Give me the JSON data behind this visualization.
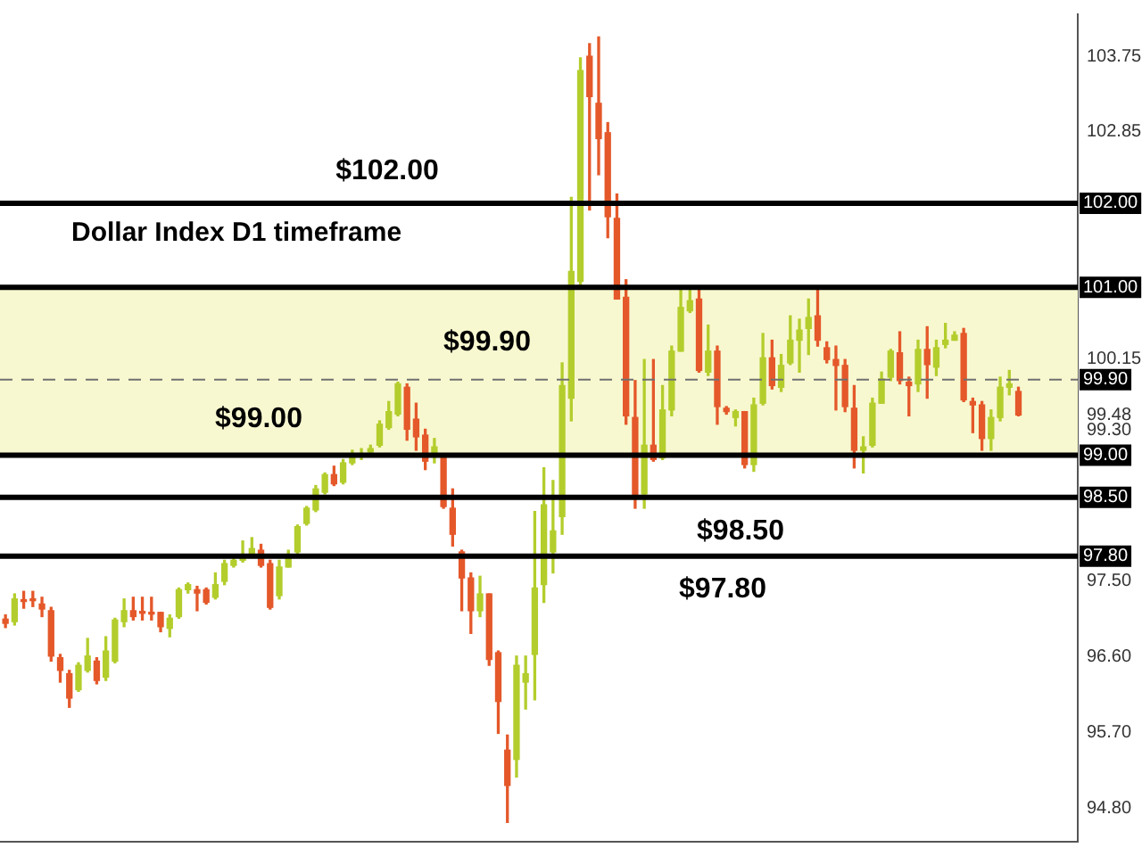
{
  "chart_data": {
    "type": "candlestick",
    "title": "Dollar Index D1 timeframe",
    "categories": [
      null,
      null,
      null,
      null,
      null,
      null,
      null,
      null,
      null,
      null,
      null,
      null,
      null,
      null,
      null,
      null,
      null,
      null,
      null,
      null,
      null,
      null,
      null,
      null,
      null,
      null,
      null,
      null,
      null,
      null,
      null,
      null,
      null,
      null,
      null,
      null,
      null,
      null,
      null,
      null,
      null,
      null,
      null,
      null,
      null,
      null,
      null,
      null,
      null,
      null,
      null,
      null,
      null,
      null,
      null,
      null,
      null,
      null,
      null,
      null,
      null,
      null,
      null,
      null,
      null,
      null,
      null,
      null,
      null,
      null,
      null,
      null,
      null,
      null,
      null,
      null,
      null,
      null,
      null,
      null,
      null,
      null,
      null,
      null,
      null,
      null,
      null,
      null,
      null,
      null,
      null,
      null,
      null,
      null,
      null,
      null,
      null,
      null,
      null,
      null,
      null,
      null,
      null,
      null,
      null,
      null,
      null,
      null,
      null,
      null,
      null,
      null
    ],
    "ohlc": [
      [
        97.05,
        97.1,
        96.95,
        97.0
      ],
      [
        97.02,
        97.35,
        96.98,
        97.29
      ],
      [
        97.28,
        97.38,
        97.18,
        97.26
      ],
      [
        97.28,
        97.38,
        97.2,
        97.27
      ],
      [
        97.23,
        97.31,
        97.08,
        97.17
      ],
      [
        97.15,
        97.19,
        96.55,
        96.61
      ],
      [
        96.59,
        96.63,
        96.3,
        96.44
      ],
      [
        96.4,
        96.44,
        96.0,
        96.11
      ],
      [
        96.21,
        96.53,
        96.19,
        96.5
      ],
      [
        96.44,
        96.82,
        96.42,
        96.61
      ],
      [
        96.55,
        96.59,
        96.28,
        96.32
      ],
      [
        96.36,
        96.84,
        96.32,
        96.67
      ],
      [
        96.55,
        97.06,
        96.53,
        97.04
      ],
      [
        97.02,
        97.29,
        96.96,
        97.15
      ],
      [
        97.15,
        97.31,
        97.04,
        97.08
      ],
      [
        97.13,
        97.31,
        97.04,
        97.12
      ],
      [
        97.13,
        97.31,
        97.04,
        97.11
      ],
      [
        97.13,
        97.13,
        96.9,
        96.96
      ],
      [
        96.94,
        97.1,
        96.84,
        97.06
      ],
      [
        97.08,
        97.42,
        97.06,
        97.4
      ],
      [
        97.4,
        97.48,
        97.36,
        97.46
      ],
      [
        97.4,
        97.44,
        97.15,
        97.36
      ],
      [
        97.4,
        97.42,
        97.23,
        97.25
      ],
      [
        97.31,
        97.6,
        97.29,
        97.46
      ],
      [
        97.5,
        97.75,
        97.46,
        97.71
      ],
      [
        97.69,
        97.81,
        97.67,
        97.75
      ],
      [
        97.75,
        97.98,
        97.73,
        97.79
      ],
      [
        97.83,
        98.02,
        97.81,
        97.89
      ],
      [
        97.87,
        97.94,
        97.67,
        97.69
      ],
      [
        97.71,
        97.75,
        97.17,
        97.19
      ],
      [
        97.33,
        97.75,
        97.29,
        97.67
      ],
      [
        97.67,
        97.87,
        97.67,
        97.81
      ],
      [
        97.85,
        98.17,
        97.83,
        98.15
      ],
      [
        98.19,
        98.39,
        98.17,
        98.37
      ],
      [
        98.35,
        98.64,
        98.33,
        98.6
      ],
      [
        98.56,
        98.79,
        98.54,
        98.77
      ],
      [
        98.77,
        98.87,
        98.64,
        98.66
      ],
      [
        98.68,
        98.95,
        98.66,
        98.91
      ],
      [
        98.91,
        99.06,
        98.89,
        99.0
      ],
      [
        99.0,
        99.08,
        98.95,
        99.02
      ],
      [
        99.04,
        99.12,
        99.0,
        99.08
      ],
      [
        99.12,
        99.41,
        99.1,
        99.37
      ],
      [
        99.33,
        99.64,
        99.31,
        99.52
      ],
      [
        99.49,
        99.87,
        99.47,
        99.85
      ],
      [
        99.81,
        99.85,
        99.18,
        99.31
      ],
      [
        99.43,
        99.62,
        99.06,
        99.22
      ],
      [
        99.24,
        99.31,
        98.83,
        98.93
      ],
      [
        99.02,
        99.2,
        98.91,
        99.1
      ],
      [
        99.0,
        99.02,
        98.37,
        98.39
      ],
      [
        98.37,
        98.6,
        97.92,
        98.06
      ],
      [
        97.85,
        97.87,
        97.15,
        97.54
      ],
      [
        97.54,
        97.6,
        96.88,
        97.15
      ],
      [
        97.15,
        97.56,
        97.08,
        97.35
      ],
      [
        97.35,
        97.35,
        96.5,
        96.57
      ],
      [
        96.65,
        96.67,
        95.69,
        96.07
      ],
      [
        95.49,
        95.67,
        94.63,
        95.07
      ],
      [
        95.38,
        96.61,
        95.17,
        96.5
      ],
      [
        96.3,
        96.61,
        95.98,
        96.4
      ],
      [
        96.63,
        98.33,
        96.09,
        97.42
      ],
      [
        97.46,
        98.85,
        97.25,
        98.41
      ],
      [
        97.85,
        98.7,
        97.6,
        98.1
      ],
      [
        98.27,
        100.1,
        98.06,
        99.83
      ],
      [
        99.68,
        102.07,
        99.41,
        101.19
      ],
      [
        101.07,
        103.73,
        101.03,
        103.58
      ],
      [
        103.75,
        103.9,
        101.92,
        103.27
      ],
      [
        103.19,
        103.98,
        102.34,
        102.77
      ],
      [
        102.84,
        102.96,
        101.59,
        101.84
      ],
      [
        101.82,
        102.11,
        100.86,
        100.86
      ],
      [
        100.88,
        101.09,
        99.37,
        99.47
      ],
      [
        99.45,
        99.89,
        98.37,
        98.52
      ],
      [
        98.54,
        100.14,
        98.37,
        99.12
      ],
      [
        99.12,
        100.14,
        98.93,
        98.95
      ],
      [
        98.97,
        99.83,
        98.95,
        99.54
      ],
      [
        99.54,
        100.3,
        99.47,
        100.24
      ],
      [
        100.24,
        100.99,
        100.24,
        100.76
      ],
      [
        100.72,
        100.99,
        100.7,
        100.84
      ],
      [
        100.86,
        100.99,
        99.99,
        100.01
      ],
      [
        99.99,
        100.55,
        99.95,
        100.24
      ],
      [
        100.24,
        100.3,
        99.37,
        99.58
      ],
      [
        99.56,
        99.58,
        99.49,
        99.52
      ],
      [
        99.45,
        99.54,
        99.35,
        99.52
      ],
      [
        99.52,
        99.52,
        98.85,
        98.89
      ],
      [
        98.89,
        99.68,
        98.81,
        99.6
      ],
      [
        99.62,
        100.45,
        99.6,
        100.16
      ],
      [
        100.16,
        100.37,
        99.79,
        99.83
      ],
      [
        99.81,
        100.2,
        99.76,
        100.07
      ],
      [
        100.1,
        100.66,
        100.08,
        100.37
      ],
      [
        100.37,
        100.62,
        99.99,
        100.49
      ],
      [
        100.51,
        100.86,
        100.2,
        100.64
      ],
      [
        100.66,
        100.99,
        100.3,
        100.37
      ],
      [
        100.28,
        100.35,
        100.1,
        100.14
      ],
      [
        100.14,
        100.3,
        99.54,
        100.07
      ],
      [
        100.07,
        100.14,
        99.52,
        99.58
      ],
      [
        99.56,
        99.83,
        98.85,
        99.06
      ],
      [
        99.06,
        99.22,
        98.79,
        99.1
      ],
      [
        99.12,
        99.68,
        99.1,
        99.62
      ],
      [
        99.62,
        99.99,
        99.62,
        99.91
      ],
      [
        99.93,
        100.26,
        99.89,
        100.24
      ],
      [
        100.22,
        100.47,
        99.85,
        99.89
      ],
      [
        99.87,
        99.93,
        99.47,
        99.83
      ],
      [
        99.85,
        100.37,
        99.76,
        100.26
      ],
      [
        100.26,
        100.53,
        99.68,
        100.08
      ],
      [
        100.05,
        100.37,
        99.95,
        100.28
      ],
      [
        100.32,
        100.57,
        100.28,
        100.37
      ],
      [
        100.37,
        100.47,
        100.37,
        100.43
      ],
      [
        100.45,
        100.51,
        99.64,
        99.66
      ],
      [
        99.64,
        99.68,
        99.27,
        99.6
      ],
      [
        99.6,
        99.64,
        99.06,
        99.2
      ],
      [
        99.2,
        99.54,
        99.06,
        99.45
      ],
      [
        99.45,
        99.93,
        99.41,
        99.81
      ],
      [
        99.81,
        100.01,
        99.72,
        99.85
      ],
      [
        99.76,
        99.81,
        99.47,
        99.48
      ]
    ],
    "ylim": [
      94.4,
      104.25
    ],
    "yticks": [
      {
        "value": 94.8,
        "label": "94.80"
      },
      {
        "value": 95.7,
        "label": "95.70"
      },
      {
        "value": 96.6,
        "label": "96.60"
      },
      {
        "value": 97.5,
        "label": "97.50"
      },
      {
        "value": 97.8,
        "label": "97.80"
      },
      {
        "value": 98.5,
        "label": "98.50"
      },
      {
        "value": 99,
        "label": "99.00"
      },
      {
        "value": 99.3,
        "label": "99.30"
      },
      {
        "value": 99.48,
        "label": "99.48"
      },
      {
        "value": 99.9,
        "label": "99.90"
      },
      {
        "value": 100.15,
        "label": "100.15"
      },
      {
        "value": 101,
        "label": "101.00"
      },
      {
        "value": 102,
        "label": "102.00"
      },
      {
        "value": 102.85,
        "label": "102.85"
      },
      {
        "value": 103.75,
        "label": "103.75"
      }
    ],
    "ref_lines": [
      {
        "axis": "y",
        "value": 102,
        "label": "$102.00",
        "color": "#000000"
      },
      {
        "axis": "y",
        "value": 101,
        "color": "#000000"
      },
      {
        "axis": "y",
        "value": 99.9,
        "label": "$99.90",
        "color": "#707070",
        "line_style": "dashed"
      },
      {
        "axis": "y",
        "value": 99,
        "label": "$99.00",
        "color": "#000000"
      },
      {
        "axis": "y",
        "value": 98.5,
        "label": "$98.50",
        "color": "#000000"
      },
      {
        "axis": "y",
        "value": 97.8,
        "label": "$97.80",
        "color": "#000000"
      }
    ],
    "bands": [
      {
        "axis": "y",
        "from": 99,
        "to": 101,
        "color": "#f8f8d0"
      }
    ],
    "tick_labels": "y",
    "grid": false,
    "legend": false
  }
}
